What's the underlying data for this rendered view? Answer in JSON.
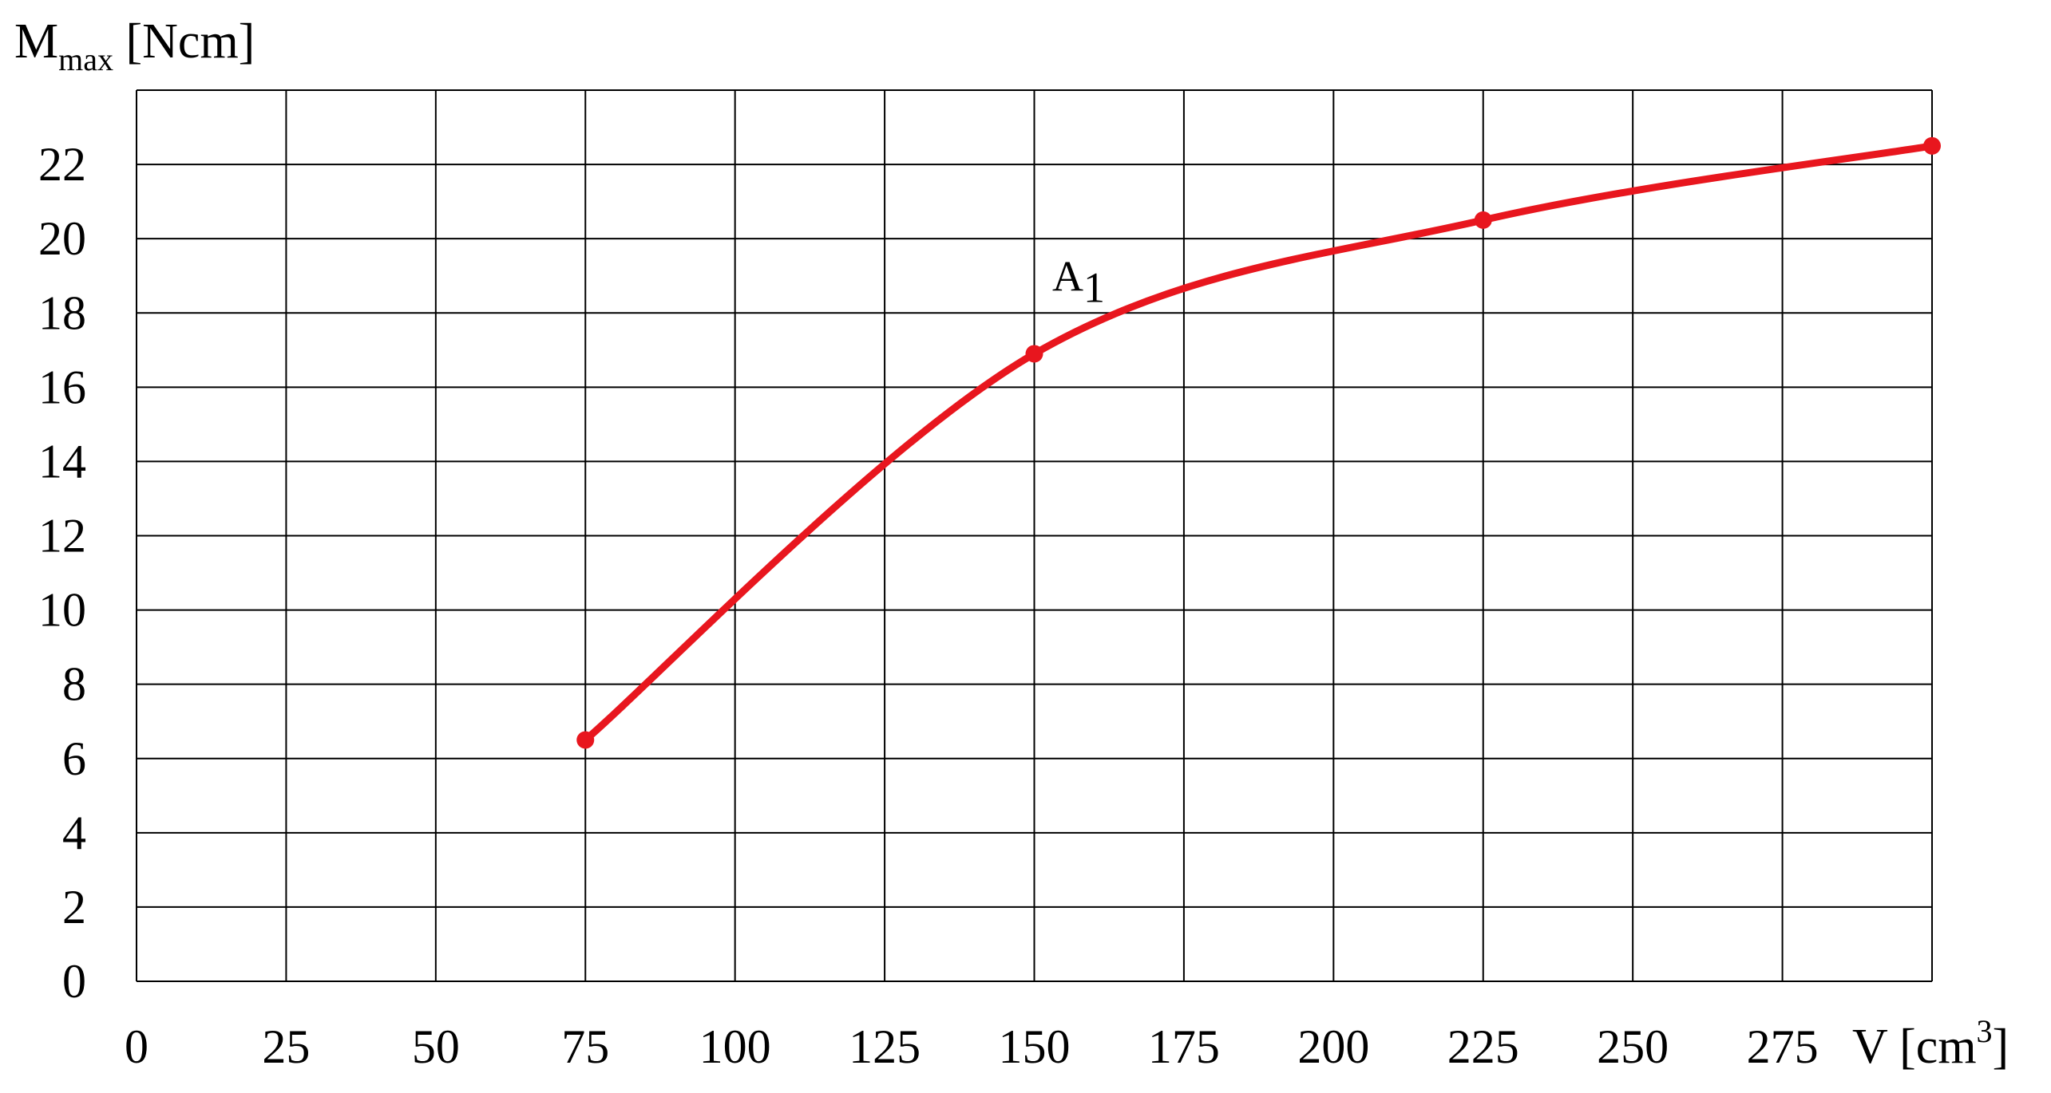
{
  "chart_data": {
    "type": "line",
    "xlabel": {
      "base": "V [cm",
      "sup": "3",
      "end": "]"
    },
    "ylabel": {
      "base": "M",
      "sub": "max",
      "unit": " [Ncm]"
    },
    "xlim": [
      0,
      300
    ],
    "ylim": [
      0,
      24
    ],
    "x_ticks": [
      "0",
      "25",
      "50",
      "75",
      "100",
      "125",
      "150",
      "175",
      "200",
      "225",
      "250",
      "275"
    ],
    "y_ticks": [
      "0",
      "2",
      "4",
      "6",
      "8",
      "10",
      "12",
      "14",
      "16",
      "18",
      "20",
      "22"
    ],
    "grid": true,
    "series": [
      {
        "color": "#e8161e",
        "points": [
          {
            "x": 75,
            "y": 6.5
          },
          {
            "x": 150,
            "y": 16.9
          },
          {
            "x": 225,
            "y": 20.5
          },
          {
            "x": 300,
            "y": 22.5
          }
        ]
      }
    ],
    "annotations": [
      {
        "base": "A",
        "sub": "1",
        "x": 153,
        "y": 18.6
      }
    ]
  }
}
